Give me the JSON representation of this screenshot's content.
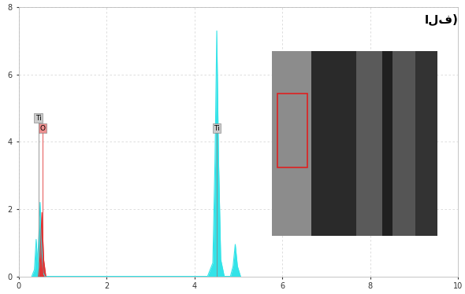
{
  "chart_data": {
    "type": "area",
    "title": "الف)",
    "series": [
      {
        "name": "Ti",
        "color": "#33e3e8",
        "x": [
          0.3,
          0.36,
          0.4,
          0.43,
          0.46,
          0.49,
          0.52,
          0.56,
          0.6,
          4.3,
          4.42,
          4.47,
          4.51,
          4.55,
          4.6,
          4.68,
          4.82,
          4.88,
          4.93,
          4.98,
          5.05
        ],
        "values": [
          0,
          0.2,
          1.1,
          0.4,
          1.2,
          2.2,
          1.0,
          0.1,
          0,
          0,
          0.4,
          3.5,
          7.3,
          3.5,
          0.5,
          0,
          0,
          0.3,
          0.95,
          0.3,
          0
        ]
      },
      {
        "name": "O",
        "color": "#e03535",
        "x": [
          0.45,
          0.49,
          0.53,
          0.57,
          0.62
        ],
        "values": [
          0,
          0.6,
          1.9,
          0.5,
          0
        ]
      }
    ],
    "annotations": [
      {
        "text": "Ti",
        "x": 0.45,
        "y": 4.6
      },
      {
        "text": "O",
        "x": 0.55,
        "y": 4.3
      },
      {
        "text": "Ti",
        "x": 4.51,
        "y": 4.3
      }
    ],
    "xlim": [
      0,
      10
    ],
    "xticks": [
      0,
      2,
      4,
      6,
      8,
      10
    ],
    "ylim": [
      0,
      8
    ],
    "yticks": [
      0,
      2,
      4,
      6,
      8
    ],
    "grid": true
  }
}
